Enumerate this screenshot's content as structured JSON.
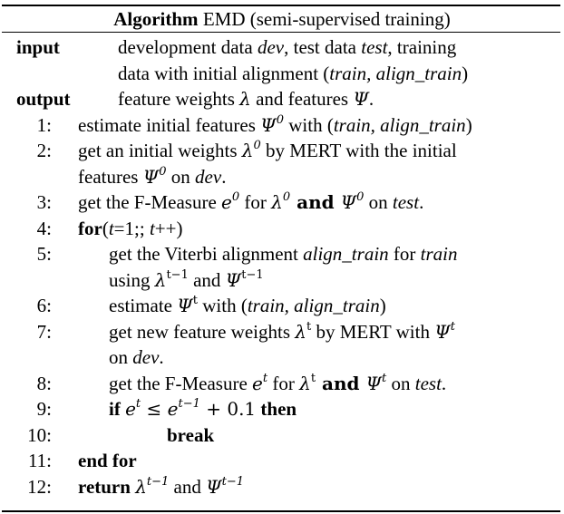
{
  "title": {
    "keyword": "Algorithm",
    "name": "EMD (semi-supervised training)"
  },
  "header": [
    {
      "label": "input",
      "lines": [
        [
          "development data ",
          {
            "i": "dev"
          },
          ", test data ",
          {
            "i": "test"
          },
          ", training"
        ],
        [
          "data with initial alignment (",
          {
            "i": "train, align_train"
          },
          ")"
        ]
      ]
    },
    {
      "label": "output",
      "lines": [
        [
          "feature weights ",
          {
            "m": "λ"
          },
          " and features ",
          {
            "m": "Ψ"
          },
          "."
        ]
      ]
    }
  ],
  "steps": [
    {
      "num": "1:",
      "indent": 0,
      "lines": [
        [
          "estimate initial features ",
          {
            "m": "Ψ",
            "sup": "0"
          },
          " with (",
          {
            "i": "train, align_train"
          },
          ")"
        ]
      ]
    },
    {
      "num": "2:",
      "indent": 0,
      "lines": [
        [
          "get an initial weights ",
          {
            "m": "λ",
            "sup": "0"
          },
          " by MERT with the initial"
        ],
        [
          "features ",
          {
            "m": "Ψ",
            "sup": "0"
          },
          " on ",
          {
            "i": "dev"
          },
          "."
        ]
      ]
    },
    {
      "num": "3:",
      "indent": 0,
      "lines": [
        [
          "get the F-Measure ",
          {
            "m": "e",
            "sup": "0"
          },
          " for ",
          {
            "m": "λ",
            "sup": "0"
          },
          {
            "mb": " and "
          },
          {
            "m": "Ψ",
            "sup": "0"
          },
          " on ",
          {
            "i": "test"
          },
          "."
        ]
      ]
    },
    {
      "num": "4:",
      "indent": 0,
      "lines": [
        [
          {
            "b": "for"
          },
          "(",
          {
            "i": "t"
          },
          "=1;; ",
          {
            "i": "t"
          },
          "++)"
        ]
      ]
    },
    {
      "num": "5:",
      "indent": 1,
      "lines": [
        [
          "get the Viterbi alignment ",
          {
            "i": "align_train"
          },
          " for ",
          {
            "i": "train"
          }
        ],
        [
          "using ",
          {
            "m": "λ",
            "supu": "t−1"
          },
          " and ",
          {
            "m": "Ψ",
            "supu": "t−1"
          }
        ]
      ]
    },
    {
      "num": "6:",
      "indent": 1,
      "lines": [
        [
          "estimate ",
          {
            "m": "Ψ",
            "supu": "t"
          },
          " with (",
          {
            "i": "train, align_train"
          },
          ")"
        ]
      ]
    },
    {
      "num": "7:",
      "indent": 1,
      "lines": [
        [
          "get new feature weights ",
          {
            "m": "λ",
            "supu": "t"
          },
          " by MERT with ",
          {
            "m": "Ψ",
            "sup": "t"
          }
        ],
        [
          "on ",
          {
            "i": "dev"
          },
          "."
        ]
      ]
    },
    {
      "num": "8:",
      "indent": 1,
      "lines": [
        [
          "get the F-Measure ",
          {
            "m": "e",
            "sup": "t"
          },
          " for ",
          {
            "m": "λ",
            "supu": "t"
          },
          {
            "mb": " and "
          },
          {
            "m": "Ψ",
            "sup": "t"
          },
          " on ",
          {
            "i": "test"
          },
          "."
        ]
      ]
    },
    {
      "num": "9:",
      "indent": 1,
      "lines": [
        [
          {
            "b": "if "
          },
          {
            "m": "e",
            "sup": "t"
          },
          {
            "mu": " ≤ "
          },
          {
            "m": "e",
            "sup": "t−1"
          },
          {
            "mu": " + 0.1"
          },
          {
            "b": " then"
          }
        ]
      ]
    },
    {
      "num": "10:",
      "indent": 2,
      "lines": [
        [
          {
            "b": "break"
          }
        ]
      ]
    },
    {
      "num": "11:",
      "indent": 0,
      "lines": [
        [
          {
            "b": "end for"
          }
        ]
      ]
    },
    {
      "num": "12:",
      "indent": 0,
      "lines": [
        [
          {
            "b": "return "
          },
          {
            "m": "λ",
            "sup": "t−1"
          },
          " and ",
          {
            "m": "Ψ",
            "sup": "t−1"
          }
        ]
      ]
    }
  ]
}
